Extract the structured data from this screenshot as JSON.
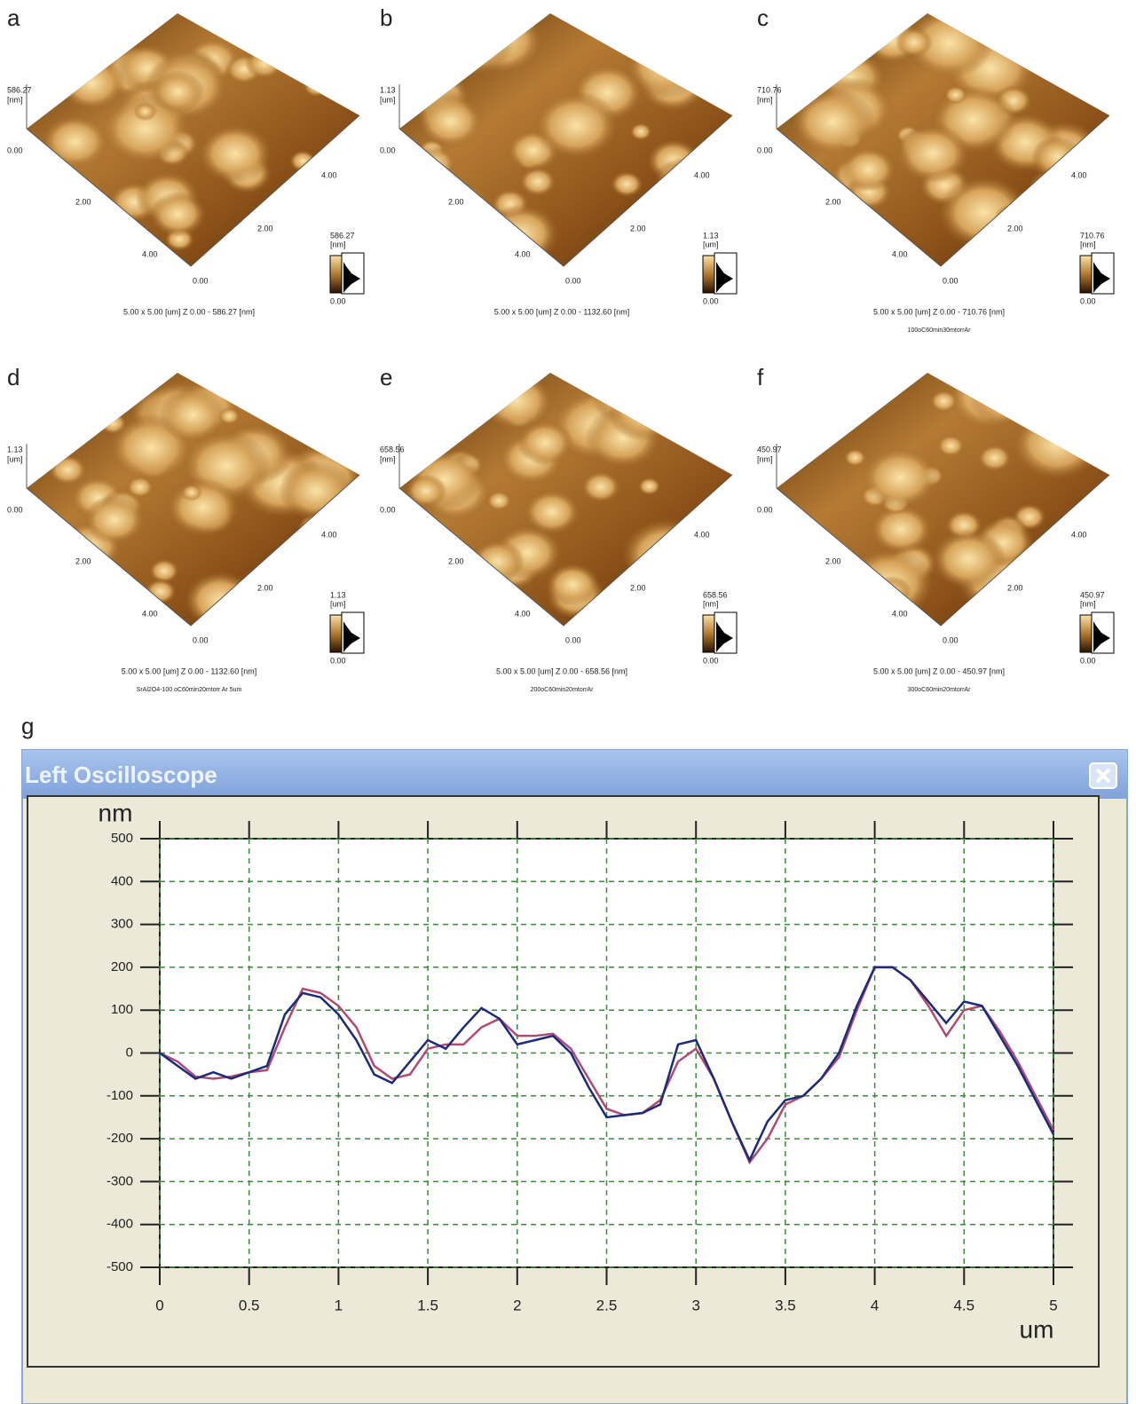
{
  "panels": [
    {
      "label": "a",
      "z_top": "586.27",
      "z_unit": "[nm]",
      "z_zero": "0.00",
      "axis_left": [
        "2.00",
        "4.00"
      ],
      "origin": "0.00",
      "axis_right": [
        "2.00",
        "4.00"
      ],
      "scale_max": "586.27",
      "scale_unit": "[nm]",
      "scale_min": "0.00",
      "caption": "5.00 x 5.00 [um]    Z  0.00  -  586.27 [nm]"
    },
    {
      "label": "b",
      "z_top": "1.13",
      "z_unit": "[um]",
      "z_zero": "0.00",
      "axis_left": [
        "2.00",
        "4.00"
      ],
      "origin": "0.00",
      "axis_right": [
        "2.00",
        "4.00"
      ],
      "scale_max": "1.13",
      "scale_unit": "[um]",
      "scale_min": "0.00",
      "caption": "5.00 x 5.00 [um]    Z  0.00  -  1132.60 [nm]"
    },
    {
      "label": "c",
      "z_top": "710.76",
      "z_unit": "[nm]",
      "z_zero": "0.00",
      "axis_left": [
        "2.00",
        "4.00"
      ],
      "origin": "0.00",
      "axis_right": [
        "2.00",
        "4.00"
      ],
      "scale_max": "710.76",
      "scale_unit": "[nm]",
      "scale_min": "0.00",
      "caption": "5.00 x 5.00 [um]    Z  0.00  -  710.76 [nm]",
      "note": "100oC60min30mtorrAr"
    },
    {
      "label": "d",
      "z_top": "1.13",
      "z_unit": "[um]",
      "z_zero": "0.00",
      "axis_left": [
        "2.00",
        "4.00"
      ],
      "origin": "0.00",
      "axis_right": [
        "2.00",
        "4.00"
      ],
      "scale_max": "1.13",
      "scale_unit": "[um]",
      "scale_min": "0.00",
      "caption": "5.00 x 5.00 [um]    Z  0.00  -  1132.60 [nm]",
      "note": "SrAl2O4-100 oC60min20mtorr Ar 5um"
    },
    {
      "label": "e",
      "z_top": "658.56",
      "z_unit": "[nm]",
      "z_zero": "0.00",
      "axis_left": [
        "2.00",
        "4.00"
      ],
      "origin": "0.00",
      "axis_right": [
        "2.00",
        "4.00"
      ],
      "scale_max": "658.56",
      "scale_unit": "[nm]",
      "scale_min": "0.00",
      "caption": "5.00 x 5.00 [um]    Z  0.00  -  658.56 [nm]",
      "note": "200oC60min20mtorrAr"
    },
    {
      "label": "f",
      "z_top": "450.97",
      "z_unit": "[nm]",
      "z_zero": "0.00",
      "axis_left": [
        "2.00",
        "4.00"
      ],
      "origin": "0.00",
      "axis_right": [
        "2.00",
        "4.00"
      ],
      "scale_max": "450.97",
      "scale_unit": "[nm]",
      "scale_min": "0.00",
      "caption": "5.00 x 5.00 [um]    Z  0.00  -  450.97 [nm]",
      "note": "300oC60min20mtorrAr"
    }
  ],
  "chart_data": {
    "type": "line",
    "panel_label": "g",
    "window_title": "Left Oscilloscope",
    "y_label": "nm",
    "x_label": "um",
    "xlim": [
      0,
      5
    ],
    "ylim": [
      -500,
      500
    ],
    "xticks": [
      0,
      0.5,
      1,
      1.5,
      2,
      2.5,
      3,
      3.5,
      4,
      4.5,
      5
    ],
    "yticks": [
      -500,
      -400,
      -300,
      -200,
      -100,
      0,
      100,
      200,
      300,
      400,
      500
    ],
    "grid": true,
    "x": [
      0,
      0.1,
      0.2,
      0.3,
      0.4,
      0.5,
      0.6,
      0.7,
      0.8,
      0.9,
      1,
      1.1,
      1.2,
      1.3,
      1.4,
      1.5,
      1.6,
      1.7,
      1.8,
      1.9,
      2,
      2.1,
      2.2,
      2.3,
      2.4,
      2.5,
      2.6,
      2.7,
      2.8,
      2.9,
      3,
      3.1,
      3.2,
      3.3,
      3.4,
      3.5,
      3.6,
      3.7,
      3.8,
      3.9,
      4,
      4.1,
      4.2,
      4.3,
      4.4,
      4.5,
      4.6,
      4.7,
      4.8,
      4.9,
      5
    ],
    "series": [
      {
        "color": "#b04a70",
        "values": [
          0,
          -20,
          -55,
          -60,
          -55,
          -45,
          -40,
          60,
          150,
          140,
          110,
          60,
          -30,
          -60,
          -50,
          10,
          20,
          20,
          60,
          80,
          40,
          40,
          45,
          10,
          -60,
          -130,
          -145,
          -140,
          -110,
          -20,
          10,
          -60,
          -160,
          -255,
          -200,
          -120,
          -100,
          -60,
          -10,
          100,
          200,
          200,
          170,
          110,
          40,
          100,
          110,
          50,
          -20,
          -100,
          -180
        ]
      },
      {
        "color": "#1c2a7a",
        "values": [
          0,
          -30,
          -60,
          -45,
          -60,
          -45,
          -30,
          90,
          140,
          130,
          90,
          30,
          -50,
          -70,
          -20,
          30,
          10,
          60,
          105,
          80,
          20,
          30,
          40,
          0,
          -80,
          -150,
          -145,
          -140,
          -120,
          20,
          30,
          -60,
          -160,
          -250,
          -160,
          -110,
          -100,
          -60,
          0,
          110,
          200,
          200,
          170,
          120,
          70,
          120,
          110,
          40,
          -30,
          -110,
          -190
        ]
      }
    ]
  }
}
